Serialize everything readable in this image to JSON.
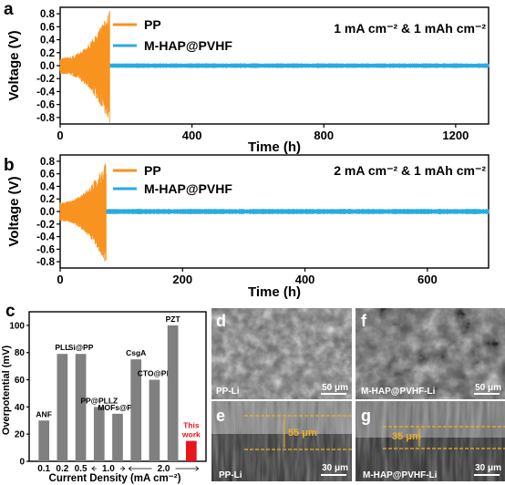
{
  "chart_data": [
    {
      "panel": "a",
      "type": "line",
      "xlabel": "Time (h)",
      "ylabel": "Voltage (V)",
      "xlim": [
        0,
        1300
      ],
      "ylim": [
        -0.9,
        0.9
      ],
      "xticks": [
        0,
        400,
        800,
        1200
      ],
      "yticks": [
        -0.8,
        -0.6,
        -0.4,
        -0.2,
        0.0,
        0.2,
        0.4,
        0.6,
        0.8
      ],
      "ytick_labels": [
        "-0.8",
        "-0.6",
        "-0.4",
        "-0.2",
        "0.0",
        "0.2",
        "0.4",
        "0.6",
        "0.8"
      ],
      "condition": "1 mA cm⁻² & 1 mAh cm⁻²",
      "series": [
        {
          "name": "PP",
          "color": "#f7931e",
          "fail_time": 150,
          "amplitude_start": 0.12,
          "amplitude_end": 0.85
        },
        {
          "name": "M-HAP@PVHF",
          "color": "#29abe2",
          "end_time": 1300,
          "amplitude": 0.03
        }
      ],
      "grid": false,
      "legend_position": "top-left"
    },
    {
      "panel": "b",
      "type": "line",
      "xlabel": "Time (h)",
      "ylabel": "Voltage (V)",
      "xlim": [
        0,
        700
      ],
      "ylim": [
        -0.9,
        0.9
      ],
      "xticks": [
        0,
        200,
        400,
        600
      ],
      "yticks": [
        -0.8,
        -0.6,
        -0.4,
        -0.2,
        0.0,
        0.2,
        0.4,
        0.6,
        0.8
      ],
      "ytick_labels": [
        "-0.8",
        "-0.6",
        "-0.4",
        "-0.2",
        "0.0",
        "0.2",
        "0.4",
        "0.6",
        "0.8"
      ],
      "condition": "2 mA cm⁻² & 1 mAh cm⁻²",
      "series": [
        {
          "name": "PP",
          "color": "#f7931e",
          "fail_time": 75,
          "amplitude_start": 0.15,
          "amplitude_end": 0.8
        },
        {
          "name": "M-HAP@PVHF",
          "color": "#29abe2",
          "end_time": 700,
          "amplitude": 0.035
        }
      ],
      "grid": false,
      "legend_position": "top-left"
    },
    {
      "panel": "c",
      "type": "bar",
      "xlabel": "Current Density (mA cm⁻²)",
      "ylabel": "Overpotential (mV)",
      "ylim": [
        0,
        110
      ],
      "yticks": [
        0,
        20,
        40,
        60,
        80,
        100
      ],
      "groups": [
        {
          "label": "0.1",
          "bars": [
            0
          ]
        },
        {
          "label": "0.2",
          "bars": [
            1
          ]
        },
        {
          "label": "0.5",
          "bars": [
            2
          ]
        },
        {
          "label": "1.0",
          "bars": [
            3,
            4
          ]
        },
        {
          "label": "2.0",
          "bars": [
            5,
            6,
            7,
            8
          ]
        }
      ],
      "bars": [
        {
          "label": "ANF",
          "value": 30,
          "color": "#808080"
        },
        {
          "label": "PLL",
          "value": 79,
          "color": "#808080"
        },
        {
          "label": "Si@PP",
          "value": 79,
          "color": "#808080"
        },
        {
          "label": "PP@PLLZ",
          "value": 40,
          "color": "#808080"
        },
        {
          "label": "MOFs@PP",
          "value": 35,
          "color": "#808080"
        },
        {
          "label": "CsgA",
          "value": 75,
          "color": "#808080"
        },
        {
          "label": "CTO@PP",
          "value": 60,
          "color": "#808080"
        },
        {
          "label": "PZT",
          "value": 100,
          "color": "#808080"
        },
        {
          "label": "This work",
          "label_lines": [
            "This",
            "work"
          ],
          "value": 15,
          "color": "#e8151b"
        }
      ]
    }
  ],
  "panels": {
    "a": {
      "letter": "a"
    },
    "b": {
      "letter": "b"
    },
    "c": {
      "letter": "c"
    }
  },
  "sem_images": {
    "d": {
      "letter": "d",
      "label": "PP-Li",
      "scale": "50 μm"
    },
    "e": {
      "letter": "e",
      "label": "PP-Li",
      "scale": "30 μm",
      "thickness": "55 μm"
    },
    "f": {
      "letter": "f",
      "label": "M-HAP@PVHF-Li",
      "scale": "50 μm"
    },
    "g": {
      "letter": "g",
      "label": "M-HAP@PVHF-Li",
      "scale": "30 μm",
      "thickness": "35 μm"
    }
  }
}
